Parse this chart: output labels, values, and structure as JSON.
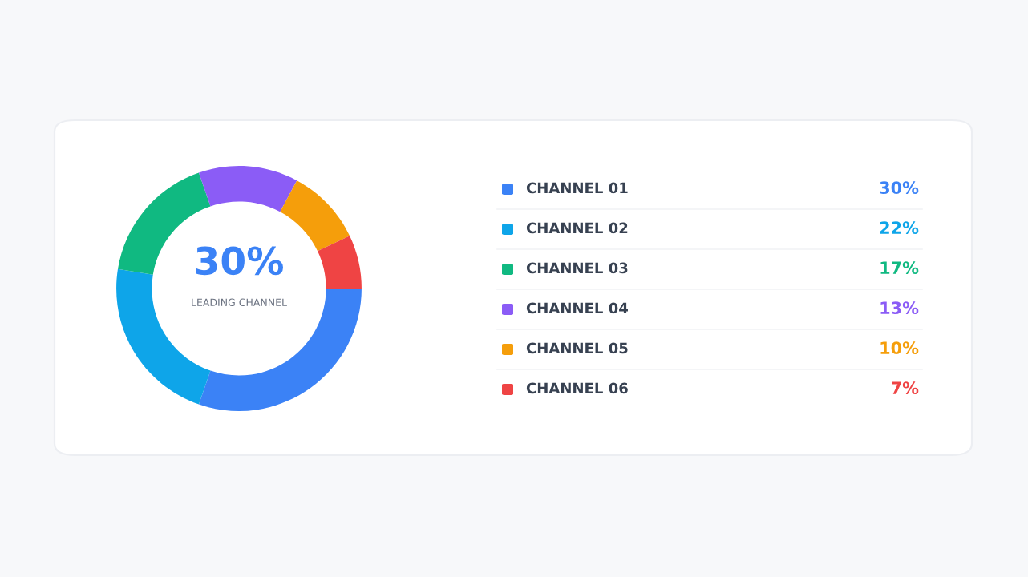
{
  "chart_data": {
    "type": "donut",
    "categories": [
      "CHANNEL 01",
      "CHANNEL 02",
      "CHANNEL 03",
      "CHANNEL 04",
      "CHANNEL 05",
      "CHANNEL 06"
    ],
    "values": [
      30,
      22,
      17,
      13,
      10,
      7
    ],
    "value_labels": [
      "30%",
      "22%",
      "17%",
      "13%",
      "10%",
      "7%"
    ],
    "colors": [
      "#3b82f6",
      "#0ea5e9",
      "#10b981",
      "#8b5cf6",
      "#f59e0b",
      "#ef4444"
    ],
    "annotations": [
      "30%",
      "LEADING CHANNEL"
    ],
    "legend": "right"
  }
}
